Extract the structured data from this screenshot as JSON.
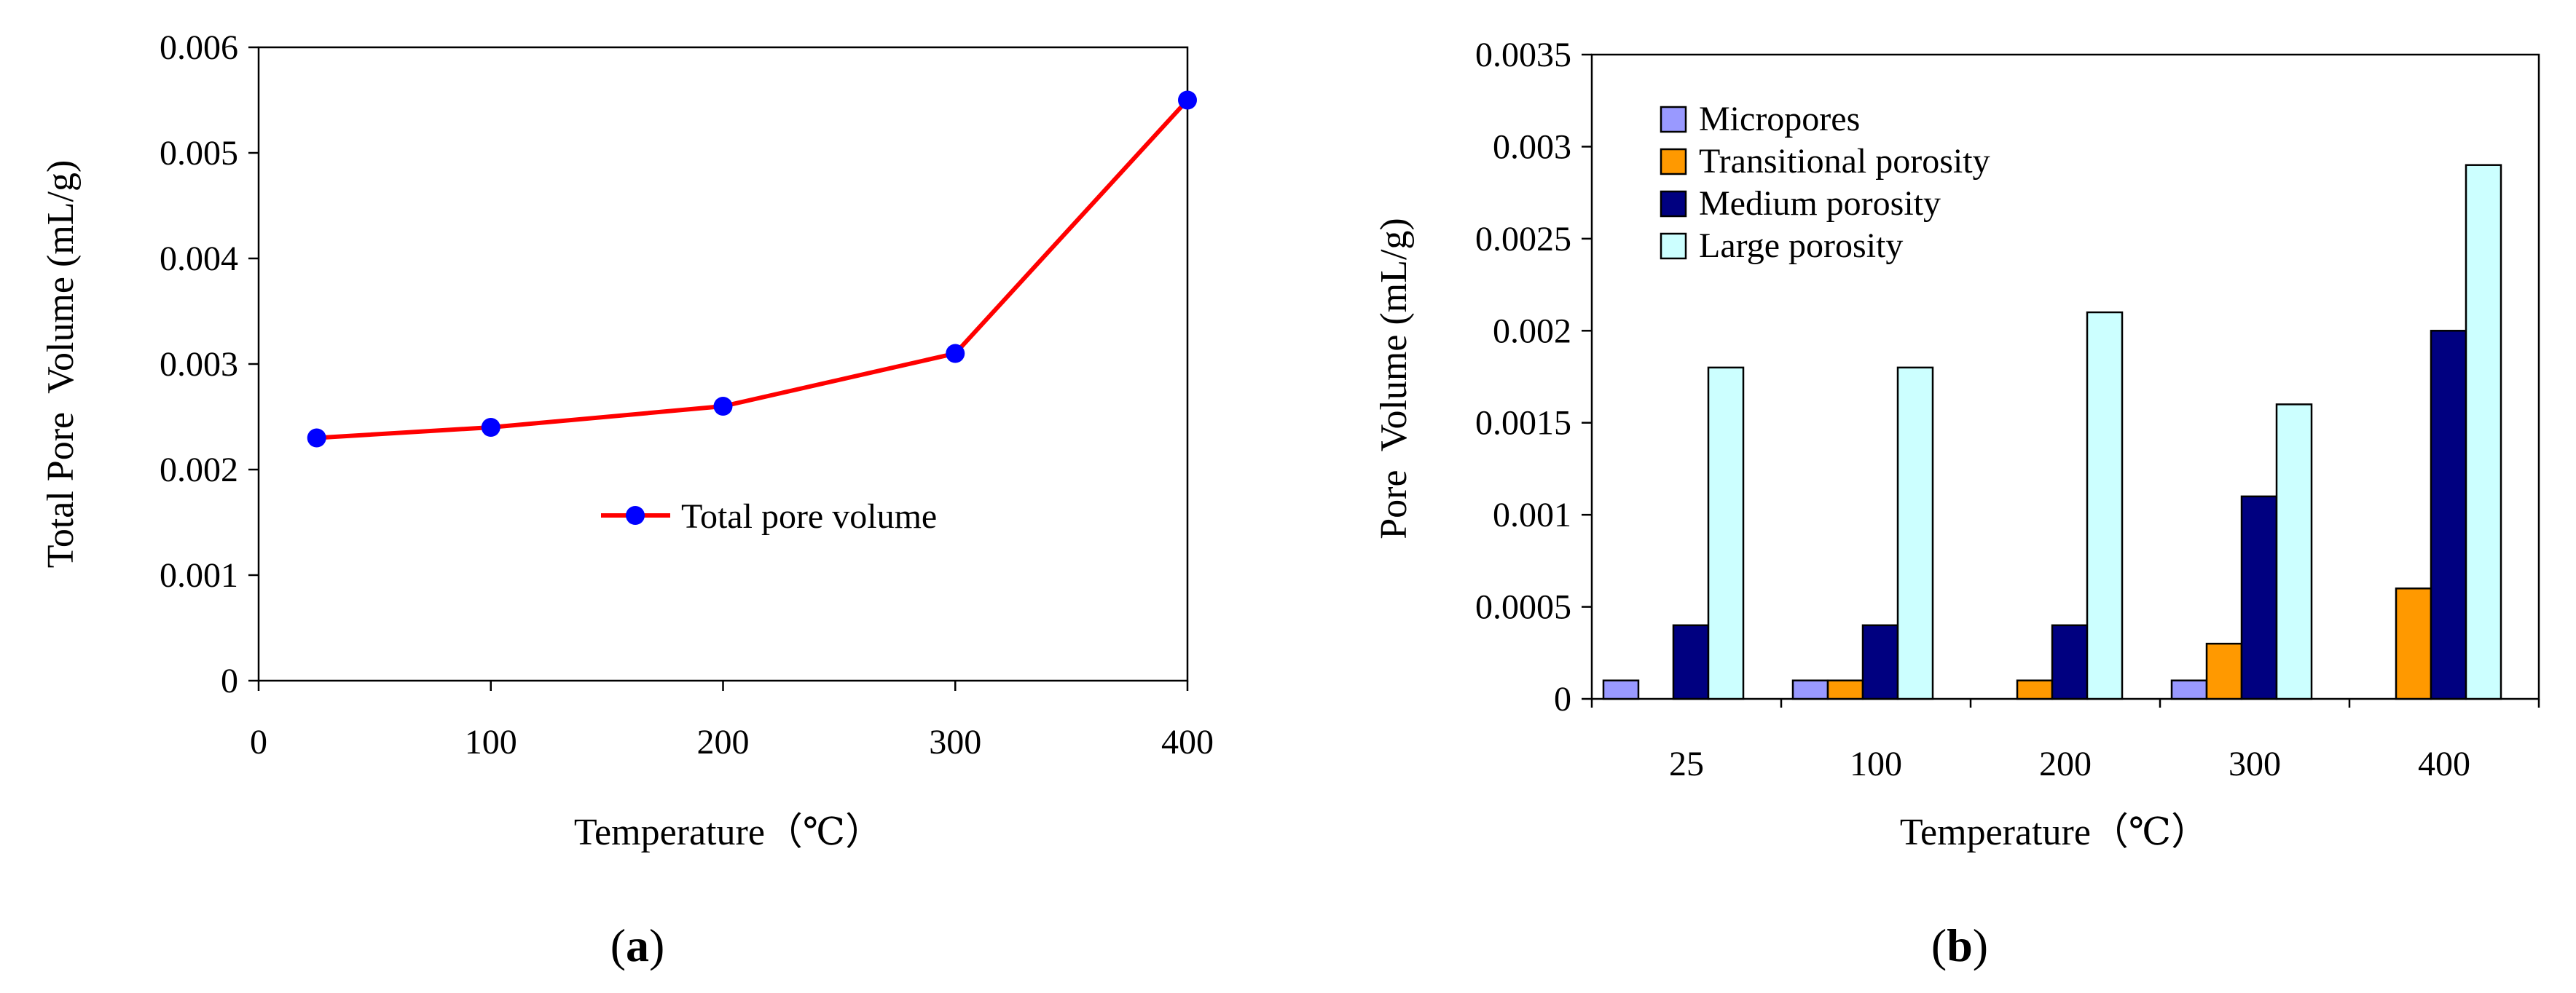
{
  "colors": {
    "line": "#ff0000",
    "marker": "#0000ff",
    "micropores": "#9999ff",
    "transitional": "#ff9900",
    "medium": "#000080",
    "large": "#ccffff"
  },
  "chart_data": [
    {
      "type": "line",
      "panel_label": "a",
      "title": "",
      "xlabel": "Temperature（℃）",
      "ylabel": "Total Pore  Volume (mL/g)",
      "xlim": [
        0,
        400
      ],
      "ylim": [
        0,
        0.006
      ],
      "xticks": [
        "0",
        "100",
        "200",
        "300",
        "400"
      ],
      "yticks": [
        "0",
        "0.001",
        "0.002",
        "0.003",
        "0.004",
        "0.005",
        "0.006"
      ],
      "series": [
        {
          "name": "Total pore volume",
          "x": [
            25,
            100,
            200,
            300,
            400
          ],
          "y": [
            0.0023,
            0.0024,
            0.0026,
            0.0031,
            0.0055
          ]
        }
      ],
      "legend": "center-right",
      "grid": false
    },
    {
      "type": "bar",
      "panel_label": "b",
      "title": "",
      "xlabel": "Temperature（℃）",
      "ylabel": "Pore  Volume (mL/g)",
      "ylim": [
        0,
        0.0035
      ],
      "yticks": [
        "0",
        "0.0005",
        "0.001",
        "0.0015",
        "0.002",
        "0.0025",
        "0.003",
        "0.0035"
      ],
      "categories": [
        "25",
        "100",
        "200",
        "300",
        "400"
      ],
      "series": [
        {
          "name": "Micropores",
          "values": [
            0.0001,
            0.0001,
            0,
            0.0001,
            0
          ]
        },
        {
          "name": "Transitional porosity",
          "values": [
            0,
            0.0001,
            0.0001,
            0.0003,
            0.0006
          ]
        },
        {
          "name": "Medium porosity",
          "values": [
            0.0004,
            0.0004,
            0.0004,
            0.0011,
            0.002
          ]
        },
        {
          "name": "Large porosity",
          "values": [
            0.0018,
            0.0018,
            0.0021,
            0.0016,
            0.0029
          ]
        }
      ],
      "legend": "top-left",
      "grid": false
    }
  ]
}
